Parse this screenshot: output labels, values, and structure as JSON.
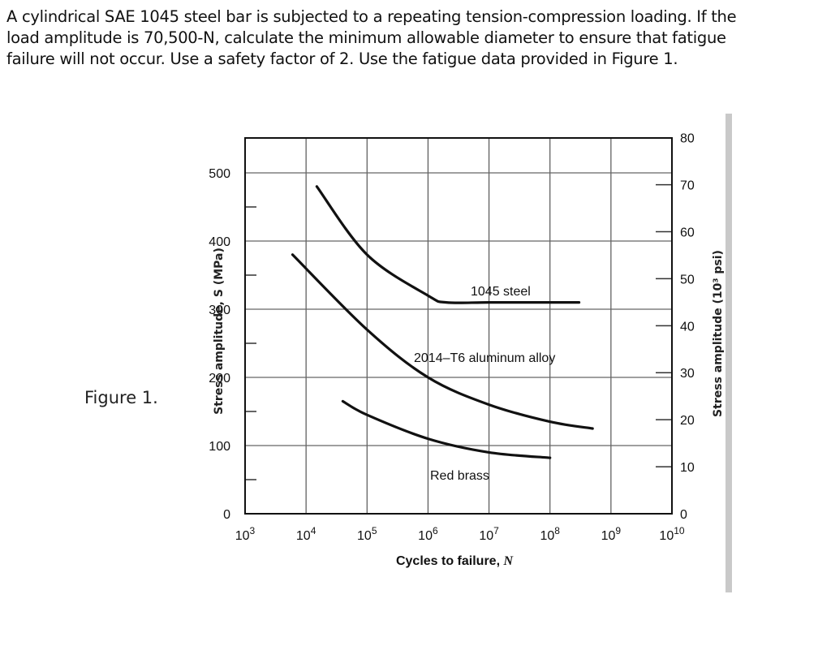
{
  "problem": {
    "lines": [
      "A cylindrical SAE 1045 steel bar is subjected to a repeating tension-compression loading. If the",
      "load amplitude is 70,500-N, calculate the minimum allowable diameter to ensure that fatigue",
      "failure will not occur. Use a safety factor of 2. Use the fatigue data provided in Figure 1."
    ]
  },
  "figure": {
    "label": "Figure 1."
  },
  "chart_data": {
    "type": "line",
    "title": "",
    "xlabel": "Cycles to failure, N",
    "ylabel": "Stress amplitude, S (MPa)",
    "ylabel_secondary": "Stress amplitude (10³ psi)",
    "xscale": "log",
    "xlim": [
      1000,
      10000000000
    ],
    "ylim": [
      0,
      550
    ],
    "ylim_secondary": [
      0,
      80
    ],
    "grid": true,
    "x_tick_labels": [
      "10³",
      "10⁴",
      "10⁵",
      "10⁶",
      "10⁷",
      "10⁸",
      "10⁹",
      "10¹⁰"
    ],
    "y_tick_labels": [
      "0",
      "100",
      "200",
      "300",
      "400",
      "500"
    ],
    "y_tick_labels_secondary": [
      "0",
      "10",
      "20",
      "30",
      "40",
      "50",
      "60",
      "70",
      "80"
    ],
    "series": [
      {
        "name": "1045 steel",
        "points": [
          [
            15000,
            480
          ],
          [
            100000,
            380
          ],
          [
            1000000,
            320
          ],
          [
            2000000,
            310
          ],
          [
            10000000,
            310
          ],
          [
            100000000,
            310
          ],
          [
            300000000,
            310
          ]
        ]
      },
      {
        "name": "2014–T6 aluminum alloy",
        "points": [
          [
            6000,
            380
          ],
          [
            100000,
            270
          ],
          [
            1000000,
            200
          ],
          [
            10000000,
            160
          ],
          [
            100000000,
            135
          ],
          [
            500000000,
            125
          ]
        ]
      },
      {
        "name": "Red brass",
        "points": [
          [
            40000,
            165
          ],
          [
            100000,
            145
          ],
          [
            1000000,
            110
          ],
          [
            10000000,
            90
          ],
          [
            100000000,
            82
          ]
        ]
      }
    ],
    "annotations": [
      {
        "text": "1045 steel",
        "near": "steel endurance plateau ~310 MPa"
      },
      {
        "text": "2014–T6 aluminum alloy"
      },
      {
        "text": "Red brass"
      }
    ]
  }
}
